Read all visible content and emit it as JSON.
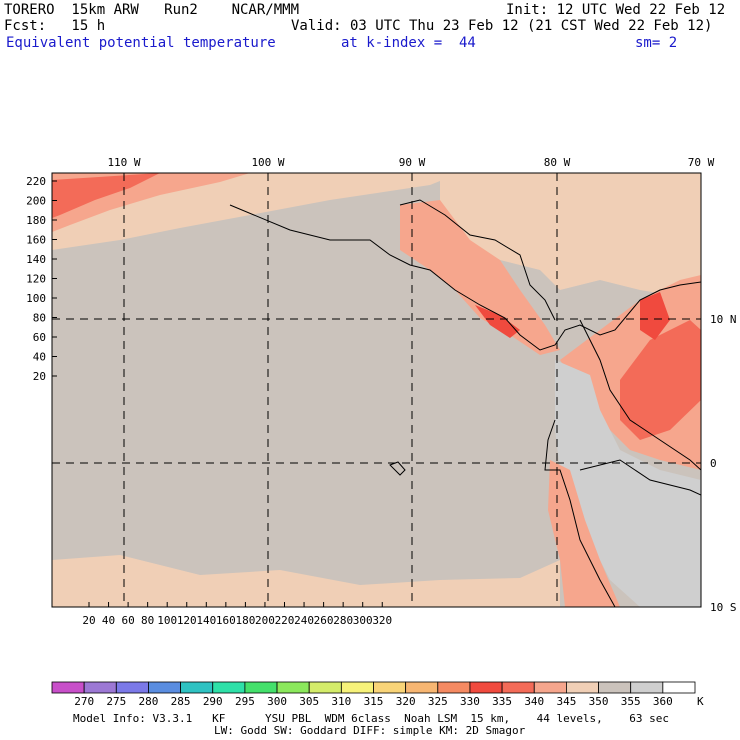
{
  "header": {
    "model": "TORERO  15km ARW   Run2    NCAR/MMM",
    "init": "Init: 12 UTC Wed 22 Feb 12",
    "fcst_label": "Fcst:   15 h",
    "valid": "Valid: 03 UTC Thu 23 Feb 12 (21 CST Wed 22 Feb 12)",
    "field": "Equivalent potential temperature",
    "kindex": "at k-index =  44",
    "sm": "sm= 2"
  },
  "map": {
    "top_lon_labels": [
      "110 W",
      "100 W",
      "90 W",
      "80 W",
      "70 W"
    ],
    "right_lat_labels": [
      "10 N",
      "0",
      "10 S"
    ],
    "left_ticks": [
      "220",
      "200",
      "180",
      "160",
      "140",
      "120",
      "100",
      "80",
      "60",
      "40",
      "20"
    ],
    "bottom_ticks": [
      "20",
      "40",
      "60",
      "80",
      "100",
      "120",
      "140",
      "160",
      "180",
      "200",
      "220",
      "240",
      "260",
      "280",
      "300",
      "320"
    ],
    "colors": {
      "background": "#cbc3bc",
      "warm_light": "#f0cfb6",
      "warm_mid": "#f6a68d",
      "warm_strong": "#f36b58",
      "hot": "#f04a3e",
      "cold": "#cfcfcf",
      "border": "#000000"
    }
  },
  "colorbar": {
    "levels": [
      "270",
      "275",
      "280",
      "285",
      "290",
      "295",
      "300",
      "305",
      "310",
      "315",
      "320",
      "325",
      "330",
      "335",
      "340",
      "345",
      "350",
      "355",
      "360"
    ],
    "unit": "K",
    "colors": [
      "#c84fc9",
      "#9c78d4",
      "#7b79e8",
      "#5a8de0",
      "#2fc2c2",
      "#2ee0a8",
      "#44e06b",
      "#8be85c",
      "#d4ec6a",
      "#f7f27a",
      "#f9d478",
      "#f7b672",
      "#f58a62",
      "#f04a3e",
      "#f36b58",
      "#f6a68d",
      "#f0cfb6",
      "#cbc3bc",
      "#cfcfcf",
      "#ffffff"
    ]
  },
  "footer": {
    "line1": "Model Info: V3.3.1   KF      YSU PBL  WDM 6class  Noah LSM  15 km,    44 levels,    63 sec",
    "line2": "LW: Godd SW: Goddard DIFF: simple KM: 2D Smagor"
  }
}
